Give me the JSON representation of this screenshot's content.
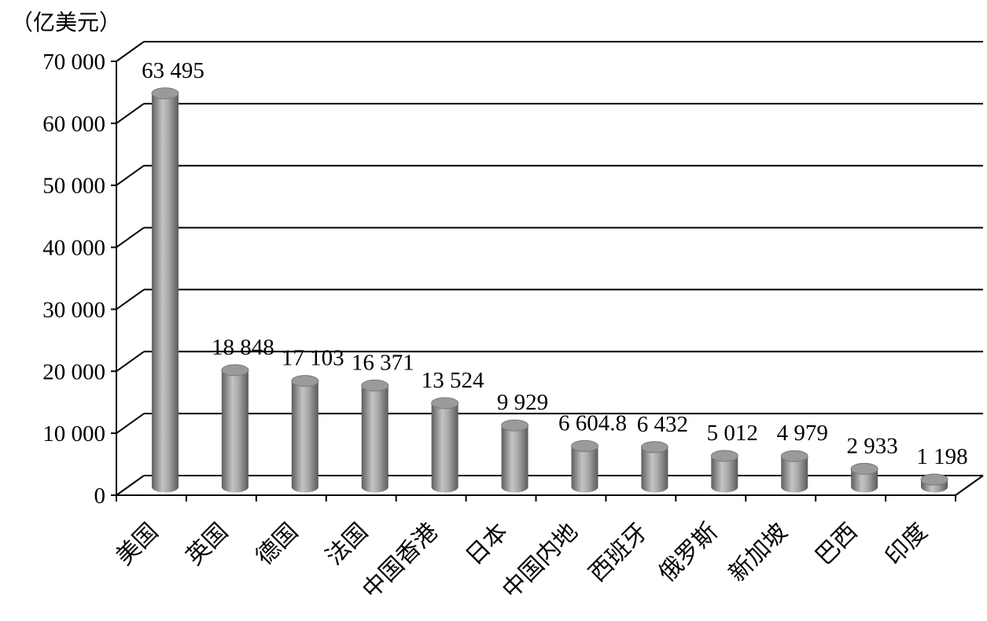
{
  "chart_data": {
    "type": "bar",
    "unit_label": "（亿美元）",
    "categories": [
      "美国",
      "英国",
      "德国",
      "法国",
      "中国香港",
      "日本",
      "中国内地",
      "西班牙",
      "俄罗斯",
      "新加坡",
      "巴西",
      "印度"
    ],
    "values": [
      63495,
      18848,
      17103,
      16371,
      13524,
      9929,
      6604.8,
      6432,
      5012,
      4979,
      2933,
      1198
    ],
    "value_labels": [
      "63 495",
      "18 848",
      "17 103",
      "16 371",
      "13 524",
      "9 929",
      "6 604.8",
      "6 432",
      "5 012",
      "4 979",
      "2 933",
      "1 198"
    ],
    "ylim": [
      0,
      70000
    ],
    "yticks": [
      0,
      10000,
      20000,
      30000,
      40000,
      50000,
      60000,
      70000
    ],
    "ytick_labels": [
      "0",
      "10 000",
      "20 000",
      "30 000",
      "40 000",
      "50 000",
      "60 000",
      "70 000"
    ],
    "grid": true,
    "style": "3d-cylinder",
    "bar_color": "#8c8c8c"
  }
}
